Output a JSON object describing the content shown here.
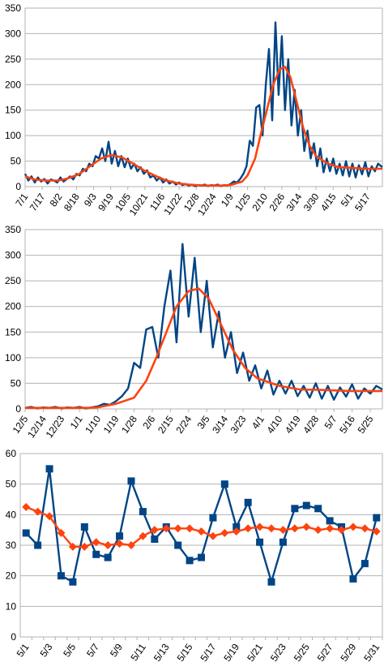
{
  "chart_data": [
    {
      "type": "line",
      "ylim": [
        0,
        350
      ],
      "yticks": [
        0,
        50,
        100,
        150,
        200,
        250,
        300,
        350
      ],
      "grid": true,
      "legend": "none",
      "x_tick_labels": [
        "7/1",
        "7/17",
        "8/2",
        "8/18",
        "9/3",
        "9/19",
        "10/5",
        "10/21",
        "11/6",
        "11/22",
        "12/8",
        "12/24",
        "1/9",
        "1/25",
        "2/10",
        "2/26",
        "3/14",
        "3/30",
        "4/15",
        "5/1",
        "5/17"
      ],
      "x_start": "7/1",
      "x_end": "5/31",
      "colors": {
        "daily": "#004586",
        "average": "#ff420e"
      },
      "series": [
        {
          "key": "daily",
          "points": [
            [
              "7/1",
              25
            ],
            [
              "7/4",
              12
            ],
            [
              "7/7",
              20
            ],
            [
              "7/10",
              8
            ],
            [
              "7/13",
              18
            ],
            [
              "7/16",
              10
            ],
            [
              "7/19",
              15
            ],
            [
              "7/22",
              6
            ],
            [
              "7/25",
              14
            ],
            [
              "7/28",
              12
            ],
            [
              "7/31",
              8
            ],
            [
              "8/3",
              18
            ],
            [
              "8/6",
              10
            ],
            [
              "8/9",
              15
            ],
            [
              "8/12",
              20
            ],
            [
              "8/15",
              14
            ],
            [
              "8/18",
              25
            ],
            [
              "8/21",
              22
            ],
            [
              "8/24",
              35
            ],
            [
              "8/27",
              30
            ],
            [
              "8/30",
              45
            ],
            [
              "9/2",
              40
            ],
            [
              "9/5",
              60
            ],
            [
              "9/8",
              55
            ],
            [
              "9/11",
              75
            ],
            [
              "9/14",
              50
            ],
            [
              "9/17",
              88
            ],
            [
              "9/20",
              45
            ],
            [
              "9/23",
              70
            ],
            [
              "9/26",
              40
            ],
            [
              "9/29",
              60
            ],
            [
              "10/2",
              38
            ],
            [
              "10/5",
              55
            ],
            [
              "10/8",
              35
            ],
            [
              "10/11",
              45
            ],
            [
              "10/14",
              30
            ],
            [
              "10/17",
              38
            ],
            [
              "10/20",
              25
            ],
            [
              "10/23",
              32
            ],
            [
              "10/26",
              18
            ],
            [
              "10/29",
              22
            ],
            [
              "11/1",
              12
            ],
            [
              "11/4",
              18
            ],
            [
              "11/7",
              8
            ],
            [
              "11/10",
              14
            ],
            [
              "11/13",
              6
            ],
            [
              "11/16",
              10
            ],
            [
              "11/19",
              4
            ],
            [
              "11/22",
              8
            ],
            [
              "11/25",
              3
            ],
            [
              "11/28",
              5
            ],
            [
              "12/1",
              2
            ],
            [
              "12/4",
              4
            ],
            [
              "12/7",
              1
            ],
            [
              "12/10",
              3
            ],
            [
              "12/13",
              2
            ],
            [
              "12/16",
              4
            ],
            [
              "12/19",
              1
            ],
            [
              "12/22",
              3
            ],
            [
              "12/25",
              2
            ],
            [
              "12/28",
              4
            ],
            [
              "12/31",
              1
            ],
            [
              "1/3",
              3
            ],
            [
              "1/6",
              2
            ],
            [
              "1/9",
              5
            ],
            [
              "1/12",
              10
            ],
            [
              "1/15",
              8
            ],
            [
              "1/18",
              15
            ],
            [
              "1/21",
              25
            ],
            [
              "1/24",
              40
            ],
            [
              "1/27",
              90
            ],
            [
              "1/30",
              80
            ],
            [
              "2/2",
              155
            ],
            [
              "2/5",
              160
            ],
            [
              "2/8",
              100
            ],
            [
              "2/11",
              200
            ],
            [
              "2/14",
              270
            ],
            [
              "2/17",
              130
            ],
            [
              "2/20",
              322
            ],
            [
              "2/23",
              180
            ],
            [
              "2/26",
              295
            ],
            [
              "3/1",
              150
            ],
            [
              "3/4",
              250
            ],
            [
              "3/7",
              120
            ],
            [
              "3/10",
              190
            ],
            [
              "3/13",
              100
            ],
            [
              "3/16",
              150
            ],
            [
              "3/19",
              70
            ],
            [
              "3/22",
              110
            ],
            [
              "3/25",
              55
            ],
            [
              "3/28",
              85
            ],
            [
              "3/31",
              40
            ],
            [
              "4/3",
              75
            ],
            [
              "4/6",
              28
            ],
            [
              "4/9",
              55
            ],
            [
              "4/12",
              30
            ],
            [
              "4/15",
              55
            ],
            [
              "4/18",
              25
            ],
            [
              "4/21",
              45
            ],
            [
              "4/24",
              22
            ],
            [
              "4/27",
              50
            ],
            [
              "4/30",
              20
            ],
            [
              "5/3",
              45
            ],
            [
              "5/6",
              18
            ],
            [
              "5/9",
              42
            ],
            [
              "5/12",
              24
            ],
            [
              "5/15",
              48
            ],
            [
              "5/18",
              20
            ],
            [
              "5/21",
              40
            ],
            [
              "5/24",
              30
            ],
            [
              "5/27",
              45
            ],
            [
              "5/31",
              38
            ]
          ]
        },
        {
          "key": "average",
          "points": [
            [
              "7/1",
              20
            ],
            [
              "7/10",
              14
            ],
            [
              "7/20",
              12
            ],
            [
              "8/1",
              12
            ],
            [
              "8/10",
              16
            ],
            [
              "8/20",
              24
            ],
            [
              "9/1",
              42
            ],
            [
              "9/10",
              55
            ],
            [
              "9/20",
              62
            ],
            [
              "9/30",
              57
            ],
            [
              "10/10",
              45
            ],
            [
              "10/20",
              32
            ],
            [
              "11/1",
              20
            ],
            [
              "11/10",
              12
            ],
            [
              "11/22",
              6
            ],
            [
              "12/1",
              4
            ],
            [
              "12/15",
              2
            ],
            [
              "12/31",
              2
            ],
            [
              "1/9",
              3
            ],
            [
              "1/20",
              10
            ],
            [
              "1/25",
              22
            ],
            [
              "2/1",
              55
            ],
            [
              "2/6",
              100
            ],
            [
              "2/12",
              150
            ],
            [
              "2/18",
              200
            ],
            [
              "2/24",
              230
            ],
            [
              "3/1",
              235
            ],
            [
              "3/6",
              215
            ],
            [
              "3/12",
              165
            ],
            [
              "3/18",
              115
            ],
            [
              "3/24",
              80
            ],
            [
              "3/30",
              60
            ],
            [
              "4/10",
              45
            ],
            [
              "4/20",
              38
            ],
            [
              "5/1",
              37
            ],
            [
              "5/15",
              35
            ],
            [
              "5/31",
              35
            ]
          ]
        }
      ]
    },
    {
      "type": "line",
      "ylim": [
        0,
        350
      ],
      "yticks": [
        0,
        50,
        100,
        150,
        200,
        250,
        300,
        350
      ],
      "grid": true,
      "legend": "none",
      "x_tick_labels": [
        "12/5",
        "12/14",
        "12/23",
        "1/1",
        "1/10",
        "1/19",
        "1/28",
        "2/6",
        "2/15",
        "2/24",
        "3/5",
        "3/14",
        "3/23",
        "4/1",
        "4/10",
        "4/19",
        "4/28",
        "5/7",
        "5/16",
        "5/25"
      ],
      "x_start": "12/5",
      "x_end": "5/31",
      "colors": {
        "daily": "#004586",
        "average": "#ff420e"
      },
      "series": [
        {
          "key": "daily",
          "points": [
            [
              "12/5",
              2
            ],
            [
              "12/8",
              4
            ],
            [
              "12/11",
              1
            ],
            [
              "12/14",
              3
            ],
            [
              "12/17",
              2
            ],
            [
              "12/20",
              4
            ],
            [
              "12/23",
              1
            ],
            [
              "12/26",
              3
            ],
            [
              "12/29",
              2
            ],
            [
              "1/1",
              4
            ],
            [
              "1/4",
              1
            ],
            [
              "1/7",
              3
            ],
            [
              "1/10",
              5
            ],
            [
              "1/13",
              10
            ],
            [
              "1/16",
              8
            ],
            [
              "1/19",
              15
            ],
            [
              "1/22",
              25
            ],
            [
              "1/25",
              40
            ],
            [
              "1/28",
              90
            ],
            [
              "1/31",
              80
            ],
            [
              "2/3",
              155
            ],
            [
              "2/6",
              160
            ],
            [
              "2/9",
              100
            ],
            [
              "2/12",
              200
            ],
            [
              "2/15",
              270
            ],
            [
              "2/18",
              130
            ],
            [
              "2/21",
              322
            ],
            [
              "2/24",
              180
            ],
            [
              "2/27",
              295
            ],
            [
              "3/2",
              150
            ],
            [
              "3/5",
              250
            ],
            [
              "3/8",
              120
            ],
            [
              "3/11",
              190
            ],
            [
              "3/14",
              100
            ],
            [
              "3/17",
              150
            ],
            [
              "3/20",
              70
            ],
            [
              "3/23",
              110
            ],
            [
              "3/26",
              55
            ],
            [
              "3/29",
              85
            ],
            [
              "4/1",
              40
            ],
            [
              "4/4",
              75
            ],
            [
              "4/7",
              28
            ],
            [
              "4/10",
              55
            ],
            [
              "4/13",
              30
            ],
            [
              "4/16",
              55
            ],
            [
              "4/19",
              25
            ],
            [
              "4/22",
              45
            ],
            [
              "4/25",
              22
            ],
            [
              "4/28",
              50
            ],
            [
              "5/1",
              20
            ],
            [
              "5/4",
              45
            ],
            [
              "5/7",
              18
            ],
            [
              "5/10",
              42
            ],
            [
              "5/13",
              24
            ],
            [
              "5/16",
              48
            ],
            [
              "5/19",
              20
            ],
            [
              "5/22",
              40
            ],
            [
              "5/25",
              30
            ],
            [
              "5/28",
              45
            ],
            [
              "5/31",
              38
            ]
          ]
        },
        {
          "key": "average",
          "points": [
            [
              "12/5",
              2
            ],
            [
              "12/20",
              2
            ],
            [
              "1/5",
              2
            ],
            [
              "1/10",
              3
            ],
            [
              "1/19",
              10
            ],
            [
              "1/28",
              22
            ],
            [
              "2/3",
              55
            ],
            [
              "2/8",
              100
            ],
            [
              "2/13",
              150
            ],
            [
              "2/18",
              200
            ],
            [
              "2/24",
              230
            ],
            [
              "3/1",
              235
            ],
            [
              "3/6",
              215
            ],
            [
              "3/12",
              165
            ],
            [
              "3/18",
              115
            ],
            [
              "3/24",
              80
            ],
            [
              "3/30",
              60
            ],
            [
              "4/10",
              45
            ],
            [
              "4/20",
              38
            ],
            [
              "5/1",
              37
            ],
            [
              "5/15",
              35
            ],
            [
              "5/31",
              35
            ]
          ]
        }
      ]
    },
    {
      "type": "line",
      "ylim": [
        0,
        60
      ],
      "yticks": [
        0,
        10,
        20,
        30,
        40,
        50,
        60
      ],
      "grid": true,
      "legend": "none",
      "categories": [
        "5/1",
        "5/2",
        "5/3",
        "5/4",
        "5/5",
        "5/6",
        "5/7",
        "5/8",
        "5/9",
        "5/10",
        "5/11",
        "5/12",
        "5/13",
        "5/14",
        "5/15",
        "5/16",
        "5/17",
        "5/18",
        "5/19",
        "5/20",
        "5/21",
        "5/22",
        "5/23",
        "5/24",
        "5/25",
        "5/26",
        "5/27",
        "5/28",
        "5/29",
        "5/30",
        "5/31"
      ],
      "x_tick_labels": [
        "5/1",
        "5/3",
        "5/5",
        "5/7",
        "5/9",
        "5/11",
        "5/13",
        "5/15",
        "5/17",
        "5/19",
        "5/21",
        "5/23",
        "5/25",
        "5/27",
        "5/29",
        "5/31"
      ],
      "colors": {
        "daily": "#004586",
        "average": "#ff420e"
      },
      "series": [
        {
          "key": "daily",
          "marker": "square",
          "values": [
            34,
            30,
            55,
            20,
            18,
            36,
            27,
            26,
            33,
            51,
            41,
            32,
            36,
            30,
            25,
            26,
            39,
            50,
            36,
            44,
            31,
            18,
            31,
            42,
            43,
            42,
            38,
            36,
            19,
            24,
            39
          ]
        },
        {
          "key": "average",
          "marker": "diamond",
          "values": [
            42.5,
            41,
            39.5,
            34,
            29.5,
            29.5,
            31,
            30,
            30.5,
            30,
            33,
            35,
            35.5,
            35.5,
            35.5,
            34.5,
            33,
            34,
            34.5,
            35.5,
            36,
            35.5,
            35,
            35.5,
            36,
            35,
            35.5,
            35,
            36,
            35.5,
            34.5
          ]
        }
      ]
    }
  ]
}
